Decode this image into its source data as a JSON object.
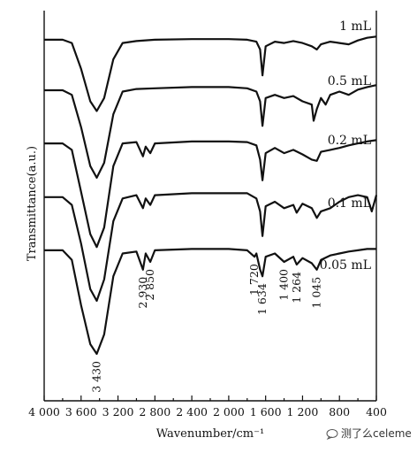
{
  "chart_data": {
    "type": "line",
    "title": "",
    "xlabel": "Wavenumber/cm⁻¹",
    "ylabel": "Transmittance(a.u.)",
    "xlim": [
      4000,
      400
    ],
    "x_reversed": true,
    "x_ticks": [
      4000,
      3600,
      3200,
      2800,
      2400,
      2000,
      1600,
      1200,
      800,
      400
    ],
    "x_tick_labels": [
      "4 000",
      "3 600",
      "3 200",
      "2 800",
      "2 400",
      "2 000",
      "1 600",
      "1 200",
      "800",
      "400"
    ],
    "ylim": [
      0,
      5.3
    ],
    "y_ticks_shown": false,
    "series": [
      {
        "name": "1 mL",
        "x": [
          4000,
          3800,
          3700,
          3600,
          3500,
          3430,
          3350,
          3250,
          3150,
          3000,
          2800,
          2400,
          2000,
          1800,
          1700,
          1660,
          1634,
          1600,
          1500,
          1400,
          1300,
          1200,
          1100,
          1045,
          1000,
          900,
          800,
          700,
          600,
          500,
          400
        ],
        "y": [
          4.85,
          4.85,
          4.8,
          4.4,
          3.9,
          3.75,
          3.95,
          4.55,
          4.8,
          4.83,
          4.85,
          4.86,
          4.86,
          4.85,
          4.82,
          4.7,
          4.3,
          4.75,
          4.82,
          4.8,
          4.83,
          4.8,
          4.75,
          4.7,
          4.78,
          4.82,
          4.8,
          4.78,
          4.84,
          4.88,
          4.9
        ]
      },
      {
        "name": "0.5 mL",
        "x": [
          4000,
          3800,
          3700,
          3600,
          3500,
          3430,
          3350,
          3250,
          3150,
          3000,
          2800,
          2400,
          2000,
          1800,
          1700,
          1660,
          1634,
          1600,
          1500,
          1400,
          1300,
          1200,
          1100,
          1080,
          1045,
          1000,
          950,
          900,
          800,
          700,
          600,
          500,
          400
        ],
        "y": [
          4.07,
          4.07,
          4.0,
          3.5,
          2.9,
          2.72,
          2.95,
          3.7,
          4.05,
          4.09,
          4.1,
          4.12,
          4.12,
          4.1,
          4.05,
          3.9,
          3.52,
          3.95,
          4.0,
          3.95,
          3.98,
          3.9,
          3.85,
          3.6,
          3.78,
          3.95,
          3.85,
          4.0,
          4.05,
          4.0,
          4.08,
          4.12,
          4.15
        ]
      },
      {
        "name": "0.2 mL",
        "x": [
          4000,
          3800,
          3700,
          3600,
          3500,
          3430,
          3350,
          3250,
          3150,
          3000,
          2930,
          2900,
          2850,
          2800,
          2400,
          2000,
          1800,
          1700,
          1660,
          1634,
          1600,
          1500,
          1400,
          1300,
          1200,
          1100,
          1045,
          1000,
          900,
          800,
          700,
          600,
          500,
          400
        ],
        "y": [
          3.25,
          3.25,
          3.15,
          2.5,
          1.85,
          1.65,
          1.95,
          2.9,
          3.25,
          3.27,
          3.05,
          3.2,
          3.1,
          3.25,
          3.28,
          3.28,
          3.27,
          3.22,
          3.0,
          2.68,
          3.1,
          3.18,
          3.1,
          3.15,
          3.08,
          3.0,
          2.98,
          3.12,
          3.15,
          3.18,
          3.22,
          3.25,
          3.28,
          3.3
        ]
      },
      {
        "name": "0.1 mL",
        "x": [
          4000,
          3800,
          3700,
          3600,
          3500,
          3430,
          3350,
          3250,
          3150,
          3000,
          2930,
          2900,
          2850,
          2800,
          2400,
          2000,
          1800,
          1700,
          1660,
          1634,
          1600,
          1500,
          1400,
          1300,
          1264,
          1200,
          1100,
          1045,
          1000,
          900,
          800,
          700,
          600,
          500,
          450,
          400
        ],
        "y": [
          2.42,
          2.42,
          2.3,
          1.7,
          1.0,
          0.82,
          1.15,
          2.05,
          2.4,
          2.45,
          2.25,
          2.4,
          2.3,
          2.45,
          2.48,
          2.48,
          2.48,
          2.4,
          2.2,
          1.82,
          2.28,
          2.35,
          2.25,
          2.3,
          2.18,
          2.32,
          2.25,
          2.1,
          2.2,
          2.25,
          2.35,
          2.42,
          2.45,
          2.42,
          2.2,
          2.45
        ]
      },
      {
        "name": "0.05 mL",
        "x": [
          4000,
          3800,
          3700,
          3600,
          3500,
          3430,
          3350,
          3250,
          3150,
          3000,
          2930,
          2900,
          2850,
          2800,
          2400,
          2000,
          1800,
          1720,
          1700,
          1660,
          1634,
          1600,
          1500,
          1400,
          1300,
          1264,
          1200,
          1100,
          1045,
          1000,
          900,
          800,
          700,
          600,
          500,
          400
        ],
        "y": [
          1.6,
          1.6,
          1.45,
          0.75,
          0.15,
          0.0,
          0.3,
          1.2,
          1.55,
          1.58,
          1.3,
          1.55,
          1.42,
          1.6,
          1.62,
          1.62,
          1.6,
          1.5,
          1.55,
          1.3,
          1.2,
          1.5,
          1.55,
          1.42,
          1.5,
          1.38,
          1.48,
          1.4,
          1.3,
          1.45,
          1.52,
          1.55,
          1.58,
          1.6,
          1.62,
          1.62
        ]
      }
    ],
    "annotations": [
      {
        "x": 3430,
        "text": "3 430"
      },
      {
        "x": 2930,
        "text": "2 930"
      },
      {
        "x": 2850,
        "text": "2 850"
      },
      {
        "x": 1720,
        "text": "1 720"
      },
      {
        "x": 1634,
        "text": "1 634"
      },
      {
        "x": 1400,
        "text": "1 400"
      },
      {
        "x": 1264,
        "text": "1 264"
      },
      {
        "x": 1045,
        "text": "1 045"
      }
    ]
  },
  "watermark": {
    "icon": "chat-bubble-icon",
    "text": "测了么celeme"
  }
}
